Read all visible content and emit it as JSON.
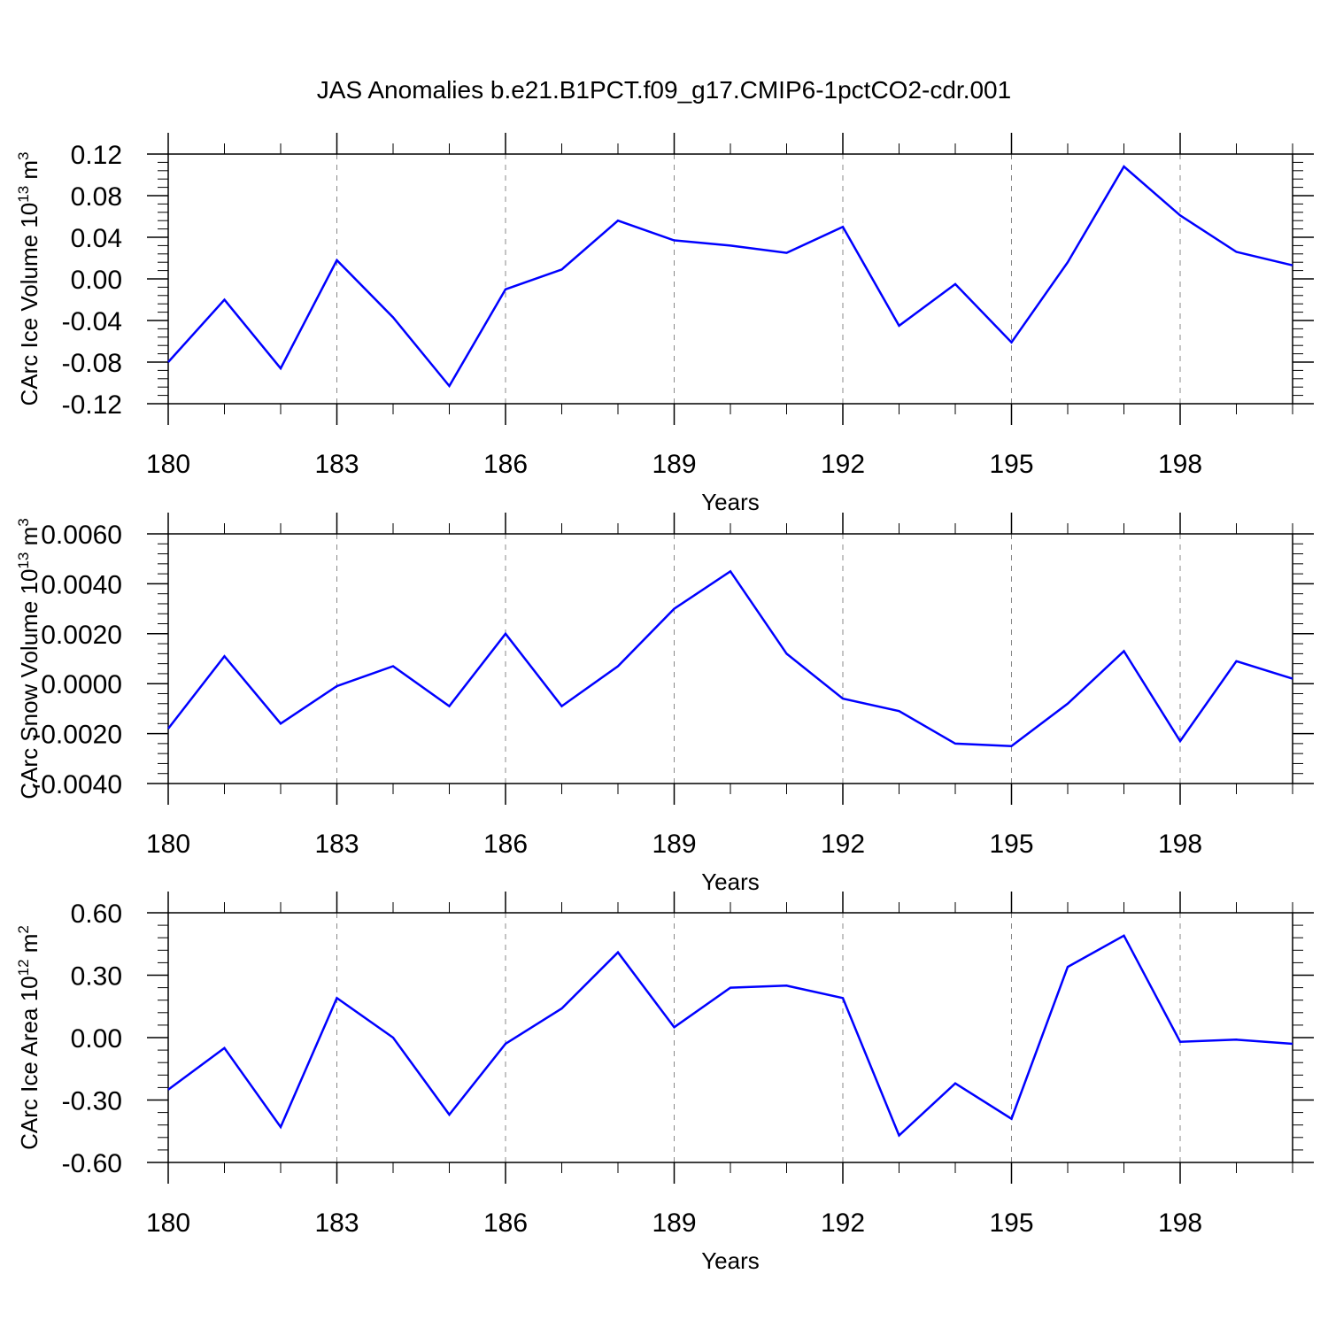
{
  "title": "JAS Anomalies b.e21.B1PCT.f09_g17.CMIP6-1pctCO2-cdr.001",
  "colors": {
    "line": "#0000ff",
    "axes": "#000000",
    "grid": "#888888"
  },
  "chart_data": [
    {
      "type": "line",
      "xlabel": "Years",
      "ylabel": {
        "base": "CArc Ice Volume 10",
        "exp": "13",
        "unit": " m",
        "unit_exp": "3"
      },
      "xlim": [
        180,
        200
      ],
      "ylim": [
        -0.12,
        0.12
      ],
      "xticks": [
        180,
        183,
        186,
        189,
        192,
        195,
        198
      ],
      "yticks": [
        -0.12,
        -0.08,
        -0.04,
        0.0,
        0.04,
        0.08,
        0.12
      ],
      "ytick_labels": [
        "-0.12",
        "-0.08",
        "-0.04",
        "0.00",
        "0.04",
        "0.08",
        "0.12"
      ],
      "grid": "vertical dashed at major x ticks",
      "series": [
        {
          "x": [
            180,
            181,
            182,
            183,
            184,
            185,
            186,
            187,
            188,
            189,
            190,
            191,
            192,
            193,
            194,
            195,
            196,
            197,
            198,
            199,
            200
          ],
          "values": [
            -0.08,
            -0.02,
            -0.086,
            0.018,
            -0.037,
            -0.103,
            -0.01,
            0.009,
            0.056,
            0.037,
            0.032,
            0.025,
            0.05,
            -0.045,
            -0.005,
            -0.061,
            0.016,
            0.108,
            0.061,
            0.026,
            0.013
          ]
        }
      ]
    },
    {
      "type": "line",
      "xlabel": "Years",
      "ylabel": {
        "base": "CArc Snow Volume 10",
        "exp": "13",
        "unit": " m",
        "unit_exp": "3"
      },
      "xlim": [
        180,
        200
      ],
      "ylim": [
        -0.004,
        0.006
      ],
      "xticks": [
        180,
        183,
        186,
        189,
        192,
        195,
        198
      ],
      "yticks": [
        -0.004,
        -0.002,
        0.0,
        0.002,
        0.004,
        0.006
      ],
      "ytick_labels": [
        "-0.0040",
        "-0.0020",
        "0.0000",
        "0.0020",
        "0.0040",
        "0.0060"
      ],
      "grid": "vertical dashed at major x ticks",
      "series": [
        {
          "x": [
            180,
            181,
            182,
            183,
            184,
            185,
            186,
            187,
            188,
            189,
            190,
            191,
            192,
            193,
            194,
            195,
            196,
            197,
            198,
            199,
            200
          ],
          "values": [
            -0.0018,
            0.0011,
            -0.0016,
            -0.0001,
            0.0007,
            -0.0009,
            0.002,
            -0.0009,
            0.0007,
            0.003,
            0.0045,
            0.0012,
            -0.0006,
            -0.0011,
            -0.0024,
            -0.0025,
            -0.0008,
            0.0013,
            -0.0023,
            0.0009,
            0.0002
          ]
        }
      ]
    },
    {
      "type": "line",
      "xlabel": "Years",
      "ylabel": {
        "base": "CArc Ice Area 10",
        "exp": "12",
        "unit": " m",
        "unit_exp": "2"
      },
      "xlim": [
        180,
        200
      ],
      "ylim": [
        -0.6,
        0.6
      ],
      "xticks": [
        180,
        183,
        186,
        189,
        192,
        195,
        198
      ],
      "yticks": [
        -0.6,
        -0.3,
        0.0,
        0.3,
        0.6
      ],
      "ytick_labels": [
        "-0.60",
        "-0.30",
        "0.00",
        "0.30",
        "0.60"
      ],
      "grid": "vertical dashed at major x ticks",
      "series": [
        {
          "x": [
            180,
            181,
            182,
            183,
            184,
            185,
            186,
            187,
            188,
            189,
            190,
            191,
            192,
            193,
            194,
            195,
            196,
            197,
            198,
            199,
            200
          ],
          "values": [
            -0.25,
            -0.05,
            -0.43,
            0.19,
            0.0,
            -0.37,
            -0.03,
            0.14,
            0.41,
            0.05,
            0.24,
            0.25,
            0.19,
            -0.47,
            -0.22,
            -0.39,
            0.34,
            0.49,
            -0.02,
            -0.01,
            -0.03
          ]
        }
      ]
    }
  ]
}
